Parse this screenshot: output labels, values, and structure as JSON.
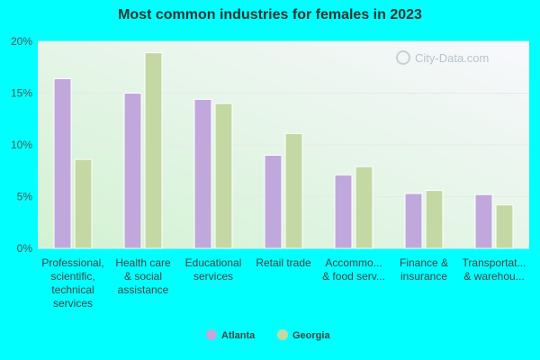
{
  "chart_data": {
    "type": "bar",
    "title": "Most common industries for females in 2023",
    "categories": [
      [
        "Professional,",
        "scientific,",
        "technical",
        "services"
      ],
      [
        "Health care",
        "& social",
        "assistance"
      ],
      [
        "Educational",
        "services"
      ],
      [
        "Retail trade"
      ],
      [
        "Accommo...",
        "& food serv..."
      ],
      [
        "Finance &",
        "insurance"
      ],
      [
        "Transportat...",
        "& warehou..."
      ]
    ],
    "series": [
      {
        "name": "Atlanta",
        "color": "#c0a8dc",
        "values": [
          16.4,
          15.0,
          14.4,
          9.0,
          7.1,
          5.3,
          5.2
        ]
      },
      {
        "name": "Georgia",
        "color": "#c4d8a4",
        "values": [
          8.6,
          18.9,
          14.0,
          11.1,
          7.9,
          5.6,
          4.2
        ]
      }
    ],
    "ylim": [
      0,
      20
    ],
    "yticks": [
      "0%",
      "5%",
      "10%",
      "15%",
      "20%"
    ],
    "ytick_values": [
      0,
      5,
      10,
      15,
      20
    ],
    "legend": "bottom",
    "watermark": "City-Data.com"
  }
}
